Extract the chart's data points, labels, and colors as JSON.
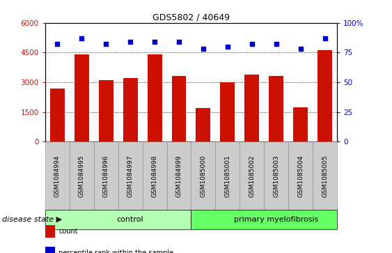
{
  "title": "GDS5802 / 40649",
  "samples": [
    "GSM1084994",
    "GSM1084995",
    "GSM1084996",
    "GSM1084997",
    "GSM1084998",
    "GSM1084999",
    "GSM1085000",
    "GSM1085001",
    "GSM1085002",
    "GSM1085003",
    "GSM1085004",
    "GSM1085005"
  ],
  "counts": [
    2700,
    4400,
    3100,
    3200,
    4400,
    3300,
    1700,
    3000,
    3400,
    3300,
    1750,
    4600
  ],
  "percentiles": [
    82,
    87,
    82,
    84,
    84,
    84,
    78,
    80,
    82,
    82,
    78,
    87
  ],
  "bar_color": "#cc1100",
  "dot_color": "#0000cc",
  "ylim_left": [
    0,
    6000
  ],
  "ylim_right": [
    0,
    100
  ],
  "yticks_left": [
    0,
    1500,
    3000,
    4500,
    6000
  ],
  "ytick_labels_left": [
    "0",
    "1500",
    "3000",
    "4500",
    "6000"
  ],
  "yticks_right": [
    0,
    25,
    50,
    75,
    100
  ],
  "ytick_labels_right": [
    "0",
    "25",
    "50",
    "75",
    "100%"
  ],
  "groups": [
    {
      "label": "control",
      "start": 0,
      "end": 6,
      "color": "#b3ffb3"
    },
    {
      "label": "primary myelofibrosis",
      "start": 6,
      "end": 12,
      "color": "#66ff66"
    }
  ],
  "disease_state_label": "disease state",
  "legend_items": [
    {
      "label": "count",
      "color": "#cc1100"
    },
    {
      "label": "percentile rank within the sample",
      "color": "#0000cc"
    }
  ],
  "grid_color": "black",
  "tick_bg_color": "#cccccc",
  "bar_width": 0.6,
  "dot_size": 18,
  "title_fontsize": 9,
  "label_fontsize": 6.5,
  "axis_fontsize": 7.5,
  "legend_fontsize": 7,
  "group_fontsize": 8,
  "disease_fontsize": 8
}
